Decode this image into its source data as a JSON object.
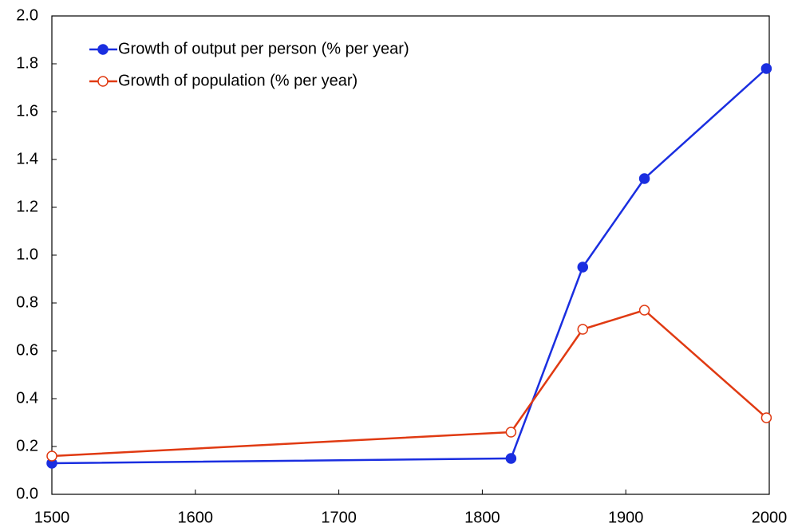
{
  "chart_data": {
    "type": "line",
    "x": [
      1500,
      1820,
      1870,
      1913,
      1998
    ],
    "series": [
      {
        "name": "Growth of output per person (% per year)",
        "color": "#1a2ee0",
        "marker": "filled",
        "values": [
          0.13,
          0.15,
          0.95,
          1.32,
          1.78
        ]
      },
      {
        "name": "Growth of population (% per year)",
        "color": "#e03a12",
        "marker": "open",
        "values": [
          0.16,
          0.26,
          0.69,
          0.77,
          0.32
        ]
      }
    ],
    "xlim": [
      1500,
      2000
    ],
    "xticks": [
      1500,
      1600,
      1700,
      1800,
      1900,
      2000
    ],
    "ylim": [
      0,
      2
    ],
    "yticks": [
      {
        "value": 0,
        "label": "0.0"
      },
      0.2,
      0.4,
      0.6,
      0.8,
      {
        "value": 1,
        "label": "1.0"
      },
      1.2,
      1.4,
      1.6,
      1.8,
      {
        "value": 2,
        "label": "2.0"
      }
    ],
    "legend": "upper left",
    "grid": false
  }
}
